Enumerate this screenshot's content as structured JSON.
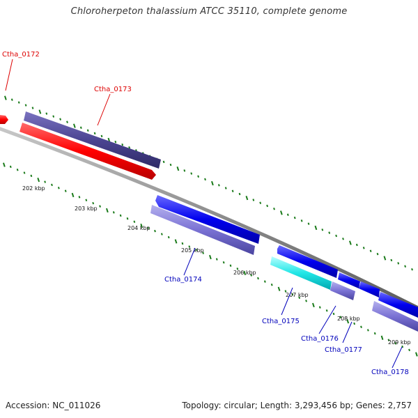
{
  "title": "Chloroherpeton thalassium ATCC 35110, complete genome",
  "footer": {
    "accession": "Accession: NC_011026",
    "summary": "Topology: circular; Length: 3,293,456 bp; Genes: 2,757"
  },
  "colors": {
    "backbone": "#8c8c8c",
    "tick": "#1a7a1a",
    "red_label": "#dd0000",
    "blue_label": "#0000bb"
  },
  "kbp_labels": [
    "202 kbp",
    "203 kbp",
    "204 kbp",
    "205 kbp",
    "206 kbp",
    "207 kbp",
    "208 kbp",
    "209 kbp"
  ],
  "genes": [
    {
      "label": "Ctha_0172",
      "color": "red"
    },
    {
      "label": "Ctha_0173",
      "color": "red"
    },
    {
      "label": "Ctha_0174",
      "color": "blue"
    },
    {
      "label": "Ctha_0175",
      "color": "blue"
    },
    {
      "label": "Ctha_0176",
      "color": "blue"
    },
    {
      "label": "Ctha_0177",
      "color": "blue"
    },
    {
      "label": "Ctha_0178",
      "color": "blue"
    }
  ]
}
